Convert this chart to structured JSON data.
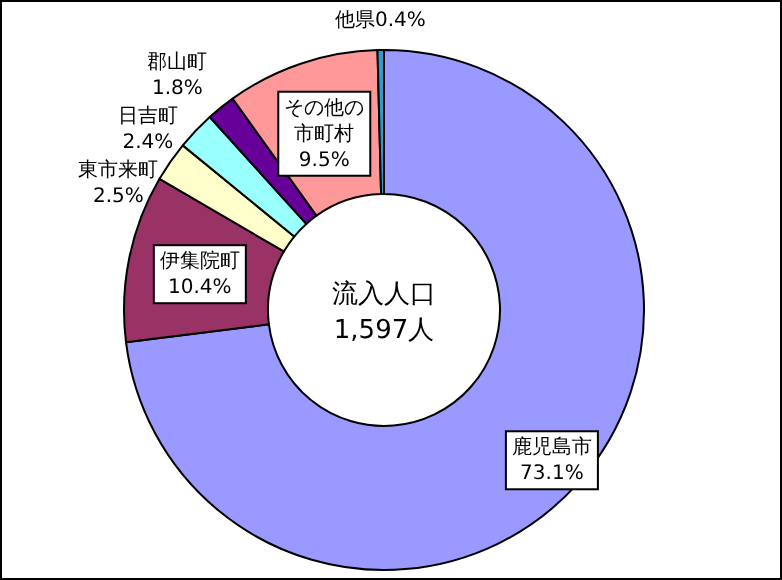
{
  "chart_data": {
    "type": "donut",
    "categories": [
      "鹿児島市",
      "伊集院町",
      "東市来町",
      "日吉町",
      "郡山町",
      "その他の市町村",
      "他県"
    ],
    "values": [
      73.1,
      10.4,
      2.5,
      2.4,
      1.8,
      9.5,
      0.4
    ],
    "value_labels": [
      "73.1%",
      "10.4%",
      "2.5%",
      "2.4%",
      "1.8%",
      "9.5%",
      "0.4%"
    ],
    "colors": [
      "#9999ff",
      "#993366",
      "#ffffcc",
      "#99ffff",
      "#660099",
      "#ff9999",
      "#3399cc"
    ],
    "annotations": [
      "流入人口",
      "1,597人"
    ]
  }
}
